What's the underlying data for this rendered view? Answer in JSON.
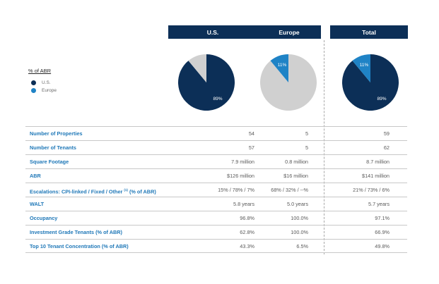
{
  "headers": {
    "us": "U.S.",
    "europe": "Europe",
    "total": "Total"
  },
  "legend": {
    "title": "% of ABR",
    "items": [
      {
        "label": "U.S.",
        "color": "#0c2f57"
      },
      {
        "label": "Europe",
        "color": "#1f83c6"
      }
    ]
  },
  "chart_data": [
    {
      "type": "pie",
      "column": "U.S.",
      "labels": [
        "U.S.",
        "Europe"
      ],
      "values": [
        89,
        11
      ],
      "colors": [
        "#0c2f57",
        "#d0d0d0"
      ],
      "data_labels": [
        "89%",
        ""
      ]
    },
    {
      "type": "pie",
      "column": "Europe",
      "labels": [
        "U.S.",
        "Europe"
      ],
      "values": [
        89,
        11
      ],
      "colors": [
        "#d0d0d0",
        "#1f83c6"
      ],
      "data_labels": [
        "",
        "11%"
      ]
    },
    {
      "type": "pie",
      "column": "Total",
      "labels": [
        "U.S.",
        "Europe"
      ],
      "values": [
        89,
        11
      ],
      "colors": [
        "#0c2f57",
        "#1f83c6"
      ],
      "data_labels": [
        "89%",
        "11%"
      ]
    }
  ],
  "table": {
    "rows": [
      {
        "label": "Number of Properties",
        "us": "54",
        "europe": "5",
        "total": "59"
      },
      {
        "label": "Number of Tenants",
        "us": "57",
        "europe": "5",
        "total": "62"
      },
      {
        "label": "Square Footage",
        "us": "7.9 million",
        "europe": "0.8 million",
        "total": "8.7 million"
      },
      {
        "label": "ABR",
        "us": "$126 million",
        "europe": "$16 million",
        "total": "$141 million"
      },
      {
        "label": "Escalations: CPI-linked / Fixed / Other",
        "sup": "(1)",
        "suffix": " (% of ABR)",
        "us": "15% / 78% / 7%",
        "europe": "68% / 32% / --%",
        "total": "21% / 73% / 6%"
      },
      {
        "label": "WALT",
        "us": "5.8 years",
        "europe": "5.0 years",
        "total": "5.7 years"
      },
      {
        "label": "Occupancy",
        "us": "96.8%",
        "europe": "100.0%",
        "total": "97.1%"
      },
      {
        "label": "Investment Grade Tenants (% of ABR)",
        "us": "62.8%",
        "europe": "100.0%",
        "total": "66.9%"
      },
      {
        "label": "Top 10 Tenant Concentration (% of ABR)",
        "us": "43.3%",
        "europe": "6.5%",
        "total": "49.8%"
      }
    ]
  }
}
